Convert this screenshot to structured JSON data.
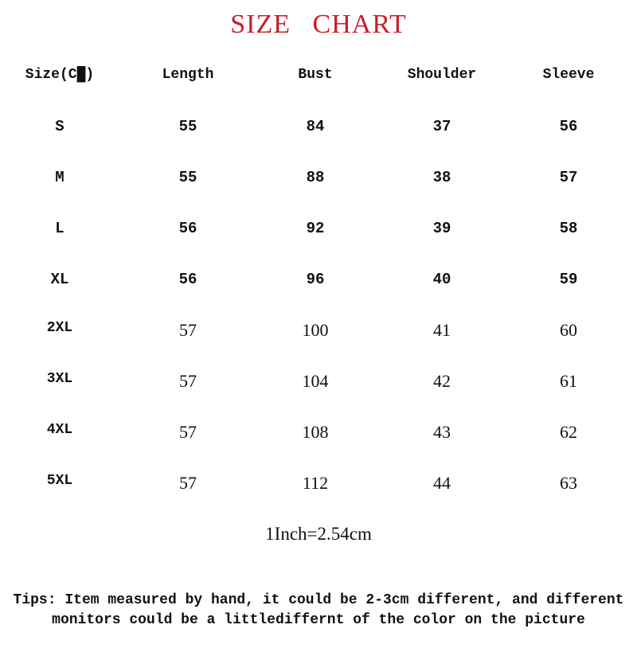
{
  "title": "SIZE CHART",
  "colors": {
    "title": "#c8202a",
    "text": "#111111"
  },
  "table": {
    "headers": [
      "Size(C█)",
      "Length",
      "Bust",
      "Shoulder",
      "Sleeve"
    ],
    "rows": [
      [
        "S",
        "55",
        "84",
        "37",
        "56"
      ],
      [
        "M",
        "55",
        "88",
        "38",
        "57"
      ],
      [
        "L",
        "56",
        "92",
        "39",
        "58"
      ],
      [
        "XL",
        "56",
        "96",
        "40",
        "59"
      ],
      [
        "2XL",
        "57",
        "100",
        "41",
        "60"
      ],
      [
        "3XL",
        "57",
        "104",
        "42",
        "61"
      ],
      [
        "4XL",
        "57",
        "108",
        "43",
        "62"
      ],
      [
        "5XL",
        "57",
        "112",
        "44",
        "63"
      ]
    ]
  },
  "conversion": "1Inch=2.54cm",
  "tips": "Tips: Item measured by hand, it could be 2-3cm different,  and different monitors could be a littlediffernt of the color on the picture"
}
